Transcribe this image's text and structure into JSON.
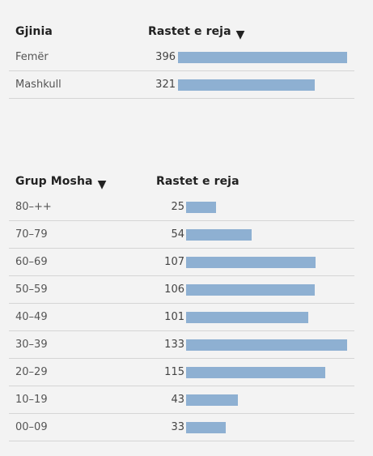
{
  "gender_table": {
    "category_header": "Gjinia",
    "value_header": "Rastet e reja",
    "sort_indicator": "▼"
  },
  "age_table": {
    "category_header": "Grup Mosha",
    "sort_indicator": "▼",
    "value_header": "Rastet e reja"
  },
  "colors": {
    "bar": "#8eb0d2",
    "background": "#f3f3f3",
    "divider": "#d5d5d5"
  },
  "chart_data": [
    {
      "type": "bar",
      "orientation": "horizontal",
      "categories": [
        "Femër",
        "Mashkull"
      ],
      "values": [
        396,
        321
      ]
    },
    {
      "type": "bar",
      "orientation": "horizontal",
      "categories": [
        "80–++",
        "70–79",
        "60–69",
        "50–59",
        "40–49",
        "30–39",
        "20–29",
        "10–19",
        "00–09"
      ],
      "values": [
        25,
        54,
        107,
        106,
        101,
        133,
        115,
        43,
        33
      ]
    }
  ]
}
